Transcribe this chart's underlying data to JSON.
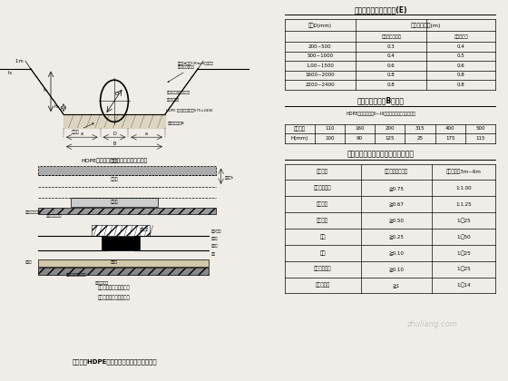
{
  "bg_color": "#f0ede8",
  "title1": "管槽送导侧工作宽度表(E)",
  "title2": "砂垫层基础厚度B尺寸表",
  "title3": "管沟边坡的最大坡度表（不加支撑）",
  "table1_rows": [
    [
      "200~500",
      "0.3",
      "0.4"
    ],
    [
      "500~1000",
      "0.4",
      "0.5"
    ],
    [
      "1.00~1500",
      "0.6",
      "0.6"
    ],
    [
      "1600~2000",
      "0.8",
      "0.8"
    ],
    [
      "2200~2400",
      "0.8",
      "0.8"
    ]
  ],
  "table2_note": "HDPE双壁波纹管（II~III型）管安装于地下水位之前",
  "table2_headers": [
    "管径规格",
    "110",
    "160",
    "200",
    "315",
    "400",
    "500"
  ],
  "table2_row": [
    "H(mm)",
    "100",
    "90",
    "125",
    "25",
    "175",
    "115"
  ],
  "table3_headers": [
    "土壤类别",
    "允许深度大约范围",
    "坡度深度为3m~6m"
  ],
  "table3_rows": [
    [
      "砾、砂、砾石",
      "≧0.75",
      "1:1.00"
    ],
    [
      "粉质黏土",
      "≧0.67",
      "1:1.25"
    ],
    [
      "软质岩石",
      "≧0.50",
      "1:坡25"
    ],
    [
      "砾土",
      "≧0.25",
      "1:坡50"
    ],
    [
      "石土",
      "≧0.10",
      "1:坡25"
    ],
    [
      "有机质的含水",
      "≧0.10",
      "1:坡25"
    ],
    [
      "允许的结构",
      "≧1",
      "1:坡14"
    ]
  ],
  "drawing_caption1": "HDPE双壁波纹管管沟开挖及回填断面图",
  "main_title": "市政道路HDPE双壁波纹管管沟开挖及回填图"
}
